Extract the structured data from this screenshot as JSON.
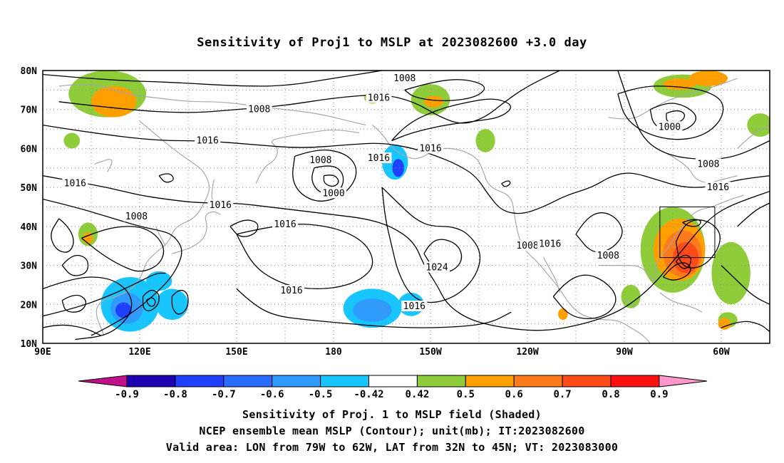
{
  "title": "Sensitivity of Proj1 to MSLP at 2023082600 +3.0 day",
  "axes": {
    "lat_labels": [
      "80N",
      "70N",
      "60N",
      "50N",
      "40N",
      "30N",
      "20N",
      "10N"
    ],
    "lat_values": [
      80,
      70,
      60,
      50,
      40,
      30,
      20,
      10
    ],
    "lon_labels": [
      "90E",
      "120E",
      "150E",
      "180",
      "150W",
      "120W",
      "90W",
      "60W"
    ],
    "lon_values": [
      90,
      120,
      150,
      180,
      210,
      240,
      270,
      300
    ],
    "lon_range": [
      90,
      315
    ],
    "lat_range": [
      10,
      80
    ],
    "grid": "dotted"
  },
  "contours": {
    "unit": "mb",
    "labels": [
      {
        "text": "1008",
        "lon": 202,
        "lat": 78
      },
      {
        "text": "1016",
        "lon": 194,
        "lat": 73
      },
      {
        "text": "1008",
        "lon": 157,
        "lat": 70
      },
      {
        "text": "1016",
        "lon": 141,
        "lat": 62
      },
      {
        "text": "1008",
        "lon": 176,
        "lat": 57
      },
      {
        "text": "1016",
        "lon": 194,
        "lat": 57.5
      },
      {
        "text": "1016",
        "lon": 210,
        "lat": 60
      },
      {
        "text": "1000",
        "lon": 180,
        "lat": 48.5
      },
      {
        "text": "1016",
        "lon": 100,
        "lat": 51
      },
      {
        "text": "1016",
        "lon": 145,
        "lat": 45.5
      },
      {
        "text": "1008",
        "lon": 119,
        "lat": 42.5
      },
      {
        "text": "1016",
        "lon": 165,
        "lat": 40.5
      },
      {
        "text": "1024",
        "lon": 212,
        "lat": 29.5
      },
      {
        "text": "1008",
        "lon": 240,
        "lat": 35
      },
      {
        "text": "1016",
        "lon": 247,
        "lat": 35.5
      },
      {
        "text": "1008",
        "lon": 265,
        "lat": 32.5
      },
      {
        "text": "1016",
        "lon": 167,
        "lat": 23.5
      },
      {
        "text": "1016",
        "lon": 205,
        "lat": 19.5
      },
      {
        "text": "1000",
        "lon": 284,
        "lat": 65.5
      },
      {
        "text": "1008",
        "lon": 296,
        "lat": 56
      },
      {
        "text": "1016",
        "lon": 299,
        "lat": 50
      }
    ]
  },
  "sensitivity_regions": [
    {
      "lon": 110,
      "lat": 74,
      "rx": 12,
      "ry": 6,
      "level": 0.5
    },
    {
      "lon": 112,
      "lat": 72,
      "rx": 7,
      "ry": 4,
      "level": 0.6
    },
    {
      "lon": 99,
      "lat": 62,
      "rx": 2.5,
      "ry": 2,
      "level": 0.5
    },
    {
      "lon": 104,
      "lat": 38,
      "rx": 3,
      "ry": 3,
      "level": 0.5
    },
    {
      "lon": 104,
      "lat": 37,
      "rx": 1.5,
      "ry": 1.5,
      "level": 0.6
    },
    {
      "lon": 117,
      "lat": 20,
      "rx": 9,
      "ry": 7,
      "level": -0.5
    },
    {
      "lon": 116,
      "lat": 19,
      "rx": 5,
      "ry": 4,
      "level": -0.6
    },
    {
      "lon": 115,
      "lat": 18.5,
      "rx": 2.5,
      "ry": 2,
      "level": -0.7
    },
    {
      "lon": 130,
      "lat": 20,
      "rx": 5,
      "ry": 4,
      "level": -0.5
    },
    {
      "lon": 126,
      "lat": 26,
      "rx": 4,
      "ry": 2.5,
      "level": -0.5
    },
    {
      "lon": 192,
      "lat": 19,
      "rx": 9,
      "ry": 5,
      "level": -0.5
    },
    {
      "lon": 192,
      "lat": 18.5,
      "rx": 6,
      "ry": 3,
      "level": -0.6
    },
    {
      "lon": 204,
      "lat": 20,
      "rx": 4,
      "ry": 3,
      "level": -0.5
    },
    {
      "lon": 199,
      "lat": 56.5,
      "rx": 4,
      "ry": 4.5,
      "level": -0.5
    },
    {
      "lon": 200,
      "lat": 55,
      "rx": 1.8,
      "ry": 2.3,
      "level": -0.7
    },
    {
      "lon": 210,
      "lat": 72.5,
      "rx": 6,
      "ry": 4,
      "level": 0.5
    },
    {
      "lon": 211,
      "lat": 72,
      "rx": 3,
      "ry": 1.5,
      "level": 0.6
    },
    {
      "lon": 192,
      "lat": 73,
      "rx": 2.5,
      "ry": 1.5,
      "level": 0.5
    },
    {
      "lon": 227,
      "lat": 62,
      "rx": 3,
      "ry": 3,
      "level": 0.5
    },
    {
      "lon": 288,
      "lat": 76,
      "rx": 9,
      "ry": 3,
      "level": 0.5
    },
    {
      "lon": 287,
      "lat": 76.5,
      "rx": 5,
      "ry": 1.5,
      "level": 0.6
    },
    {
      "lon": 296,
      "lat": 78,
      "rx": 6,
      "ry": 2,
      "level": 0.6
    },
    {
      "lon": 312,
      "lat": 66,
      "rx": 4,
      "ry": 3,
      "level": 0.5
    },
    {
      "lon": 285,
      "lat": 34,
      "rx": 10,
      "ry": 11,
      "level": 0.5
    },
    {
      "lon": 287,
      "lat": 34,
      "rx": 8,
      "ry": 8,
      "level": 0.6
    },
    {
      "lon": 288,
      "lat": 33,
      "rx": 6,
      "ry": 6,
      "level": 0.7
    },
    {
      "lon": 289,
      "lat": 32,
      "rx": 4,
      "ry": 4,
      "level": 0.8
    },
    {
      "lon": 303,
      "lat": 28,
      "rx": 6,
      "ry": 8,
      "level": 0.5
    },
    {
      "lon": 302,
      "lat": 16,
      "rx": 3,
      "ry": 2,
      "level": 0.5
    },
    {
      "lon": 301,
      "lat": 15,
      "rx": 2,
      "ry": 1.5,
      "level": 0.6
    },
    {
      "lon": 272,
      "lat": 22,
      "rx": 3,
      "ry": 3,
      "level": 0.5
    },
    {
      "lon": 251,
      "lat": 17.5,
      "rx": 1.5,
      "ry": 1.5,
      "level": 0.6
    }
  ],
  "valid_box": {
    "lon_min": 281,
    "lon_max": 298,
    "lat_min": 32,
    "lat_max": 45
  },
  "colorbar": {
    "labels": [
      "-0.9",
      "-0.8",
      "-0.7",
      "-0.6",
      "-0.5",
      "-0.42",
      "0.42",
      "0.5",
      "0.6",
      "0.7",
      "0.8",
      "0.9"
    ],
    "colors": [
      "#1f00b0",
      "#2040ff",
      "#2a6cff",
      "#2f9bff",
      "#18c6ff",
      "#ffffff",
      "#8ecc3a",
      "#ffa000",
      "#ff7a1a",
      "#ff4a1a",
      "#ff1010"
    ],
    "low_end_color": "#c0108a",
    "high_end_color": "#ff99cc"
  },
  "captions": {
    "line1": "Sensitivity of Proj. 1 to MSLP field (Shaded)",
    "line2": "NCEP ensemble mean MSLP (Contour); unit(mb); IT:2023082600",
    "line3": "Valid area: LON from 79W to 62W, LAT from 32N to 45N; VT: 2023083000"
  }
}
